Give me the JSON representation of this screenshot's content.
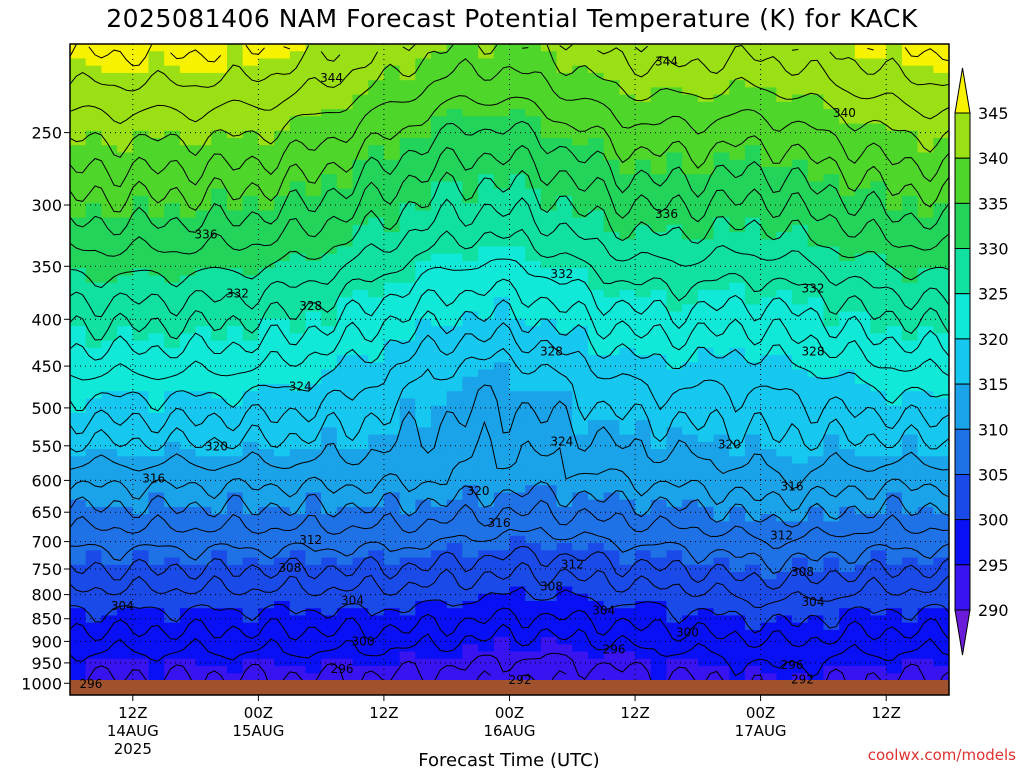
{
  "title": "2025081406 NAM Forecast Potential Temperature (K) for KACK",
  "credit": "coolwx.com/models",
  "chart_data": {
    "type": "filled-contour",
    "xlabel": "Forecast Time (UTC)",
    "ylabel": "",
    "y_unit": "hPa",
    "y_scale": "log",
    "ylim": [
      1030,
      200
    ],
    "y_ticks": [
      250,
      300,
      350,
      400,
      450,
      500,
      550,
      600,
      650,
      700,
      750,
      800,
      850,
      900,
      950,
      1000
    ],
    "x_ticks": [
      {
        "hour": 6,
        "label": "12Z",
        "sub1": "14AUG",
        "sub2": "2025"
      },
      {
        "hour": 18,
        "label": "00Z",
        "sub1": "15AUG",
        "sub2": ""
      },
      {
        "hour": 30,
        "label": "12Z",
        "sub1": "",
        "sub2": ""
      },
      {
        "hour": 42,
        "label": "00Z",
        "sub1": "16AUG",
        "sub2": ""
      },
      {
        "hour": 54,
        "label": "12Z",
        "sub1": "",
        "sub2": ""
      },
      {
        "hour": 66,
        "label": "00Z",
        "sub1": "17AUG",
        "sub2": ""
      },
      {
        "hour": 78,
        "label": "12Z",
        "sub1": "",
        "sub2": ""
      }
    ],
    "xlim": [
      0,
      84
    ],
    "colorbar": {
      "levels": [
        290,
        295,
        300,
        305,
        310,
        315,
        320,
        325,
        330,
        335,
        340,
        345
      ],
      "colors": [
        "#6a1cd8",
        "#3a14f0",
        "#0a10f5",
        "#1a4be8",
        "#1f72e6",
        "#1aa3e8",
        "#16c8f0",
        "#10e8d8",
        "#10e0a0",
        "#22d45a",
        "#4ed62a",
        "#9ae014",
        "#f7f200"
      ],
      "extend": "both"
    },
    "surface_color": "#a0522d",
    "contour_labels": [
      {
        "value": "344",
        "hour": 25,
        "p": 218
      },
      {
        "value": "344",
        "hour": 57,
        "p": 209
      },
      {
        "value": "340",
        "hour": 74,
        "p": 238
      },
      {
        "value": "336",
        "hour": 13,
        "p": 323
      },
      {
        "value": "336",
        "hour": 57,
        "p": 307
      },
      {
        "value": "332",
        "hour": 16,
        "p": 375
      },
      {
        "value": "332",
        "hour": 47,
        "p": 357
      },
      {
        "value": "332",
        "hour": 71,
        "p": 370
      },
      {
        "value": "328",
        "hour": 23,
        "p": 387
      },
      {
        "value": "328",
        "hour": 46,
        "p": 434
      },
      {
        "value": "328",
        "hour": 71,
        "p": 434
      },
      {
        "value": "324",
        "hour": 22,
        "p": 474
      },
      {
        "value": "324",
        "hour": 47,
        "p": 544
      },
      {
        "value": "320",
        "hour": 14,
        "p": 551
      },
      {
        "value": "320",
        "hour": 63,
        "p": 548
      },
      {
        "value": "320",
        "hour": 39,
        "p": 616
      },
      {
        "value": "316",
        "hour": 8,
        "p": 597
      },
      {
        "value": "316",
        "hour": 41,
        "p": 668
      },
      {
        "value": "316",
        "hour": 69,
        "p": 609
      },
      {
        "value": "312",
        "hour": 23,
        "p": 697
      },
      {
        "value": "312",
        "hour": 48,
        "p": 742
      },
      {
        "value": "312",
        "hour": 68,
        "p": 689
      },
      {
        "value": "308",
        "hour": 21,
        "p": 748
      },
      {
        "value": "308",
        "hour": 46,
        "p": 784
      },
      {
        "value": "308",
        "hour": 70,
        "p": 756
      },
      {
        "value": "304",
        "hour": 5,
        "p": 823
      },
      {
        "value": "304",
        "hour": 27,
        "p": 812
      },
      {
        "value": "304",
        "hour": 51,
        "p": 833
      },
      {
        "value": "304",
        "hour": 71,
        "p": 815
      },
      {
        "value": "300",
        "hour": 28,
        "p": 900
      },
      {
        "value": "300",
        "hour": 59,
        "p": 880
      },
      {
        "value": "296",
        "hour": 52,
        "p": 918
      },
      {
        "value": "296",
        "hour": 26,
        "p": 965
      },
      {
        "value": "296",
        "hour": 69,
        "p": 955
      },
      {
        "value": "296",
        "hour": 2,
        "p": 1002
      },
      {
        "value": "292",
        "hour": 43,
        "p": 992
      },
      {
        "value": "292",
        "hour": 70,
        "p": 990
      }
    ]
  }
}
